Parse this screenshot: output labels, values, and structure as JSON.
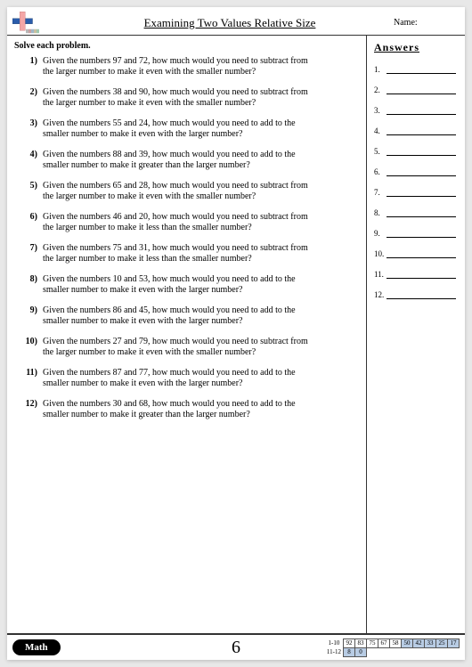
{
  "header": {
    "title": "Examining Two Values Relative Size",
    "name_label": "Name:"
  },
  "instruction": "Solve each problem.",
  "problems": [
    {
      "n": "1)",
      "t": "Given the numbers 97 and 72, how much would you need to subtract from the larger number to make it even with the smaller number?"
    },
    {
      "n": "2)",
      "t": "Given the numbers 38 and 90, how much would you need to subtract from the larger number to make it even with the smaller number?"
    },
    {
      "n": "3)",
      "t": "Given the numbers 55 and 24, how much would you need to add to the smaller number to make it even with the larger number?"
    },
    {
      "n": "4)",
      "t": "Given the numbers 88 and 39, how much would you need to add to the smaller number to make it greater than the larger number?"
    },
    {
      "n": "5)",
      "t": "Given the numbers 65 and 28, how much would you need to subtract from the larger number to make it even with the smaller number?"
    },
    {
      "n": "6)",
      "t": "Given the numbers 46 and 20, how much would you need to subtract from the larger number to make it less than the smaller number?"
    },
    {
      "n": "7)",
      "t": "Given the numbers 75 and 31, how much would you need to subtract from the larger number to make it less than the smaller number?"
    },
    {
      "n": "8)",
      "t": "Given the numbers 10 and 53, how much would you need to add to the smaller number to make it even with the larger number?"
    },
    {
      "n": "9)",
      "t": "Given the numbers 86 and 45, how much would you need to add to the smaller number to make it even with the larger number?"
    },
    {
      "n": "10)",
      "t": "Given the numbers 27 and 79, how much would you need to subtract from the larger number to make it even with the smaller number?"
    },
    {
      "n": "11)",
      "t": "Given the numbers 87 and 77, how much would you need to add to the smaller number to make it even with the larger number?"
    },
    {
      "n": "12)",
      "t": "Given the numbers 30 and 68, how much would you need to add to the smaller number to make it greater than the larger number?"
    }
  ],
  "answers": {
    "heading": "Answers",
    "count": 12
  },
  "footer": {
    "badge": "Math",
    "page_number": "6",
    "score": {
      "row1_label": "1-10",
      "row1": [
        "92",
        "83",
        "75",
        "67",
        "58",
        "50",
        "42",
        "33",
        "25",
        "17"
      ],
      "row2_label": "11-12",
      "row2": [
        "8",
        "0"
      ]
    }
  },
  "colors": {
    "plus_h": "#2a5caa",
    "plus_v": "#f4a6a6",
    "tabs": [
      "#b8b8b8",
      "#c9a0a0",
      "#a0b8c9",
      "#c9c0a0",
      "#a0c9b0"
    ]
  }
}
